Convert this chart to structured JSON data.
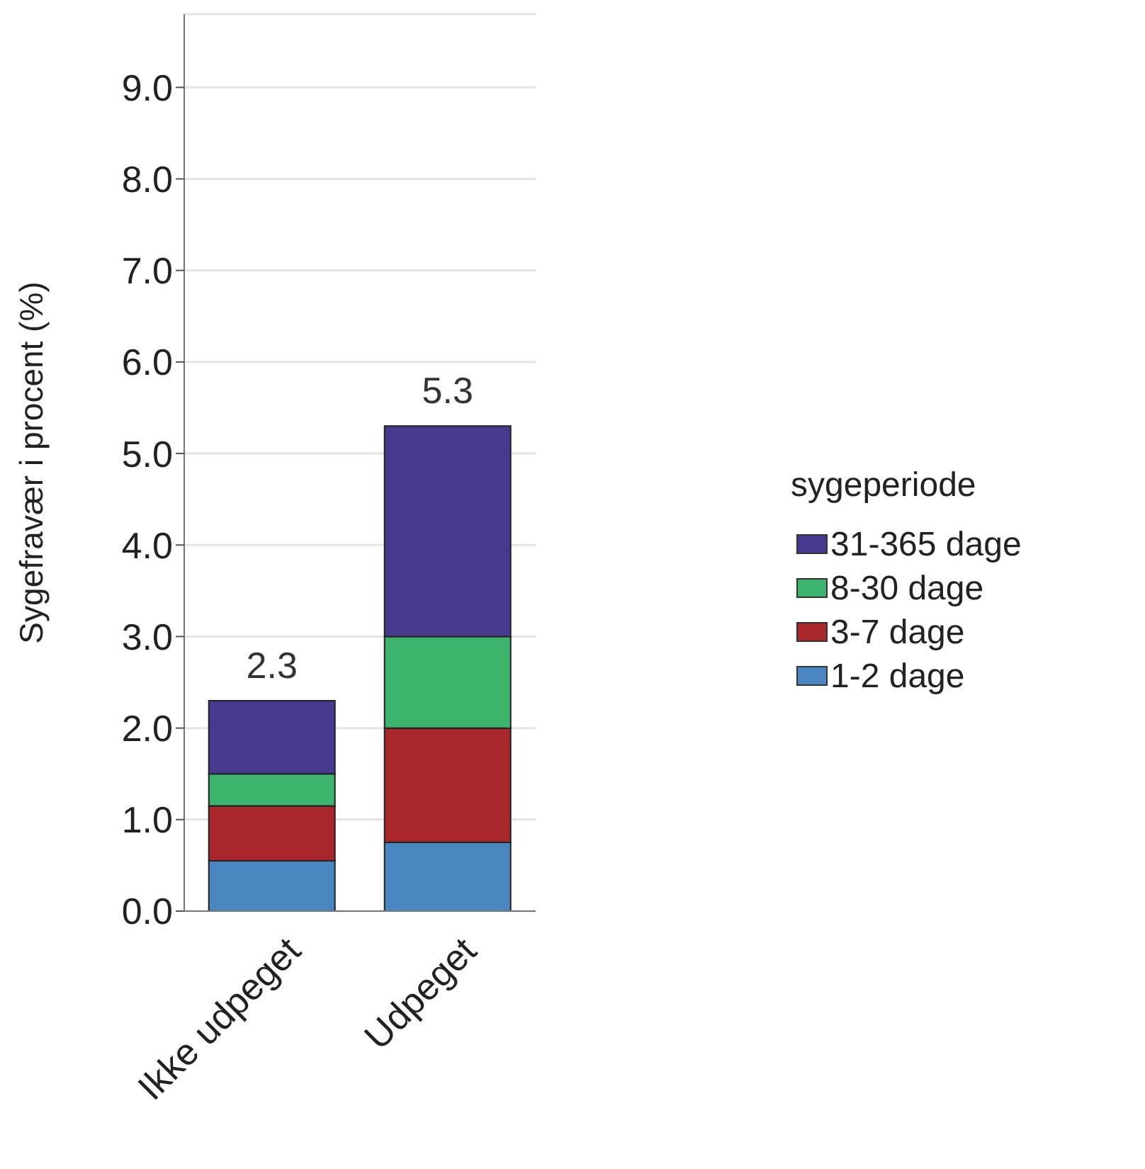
{
  "chart_data": {
    "type": "bar",
    "stacked": true,
    "ylabel": "Sygefravær i procent (%)",
    "legend_title": "sygeperiode",
    "legend": "right",
    "grid": "y",
    "categories": [
      "Ikke udpeget",
      "Udpeget"
    ],
    "series": [
      {
        "name": "1-2 dage",
        "color": "#4a86c0",
        "values": [
          0.55,
          0.75
        ]
      },
      {
        "name": "3-7 dage",
        "color": "#a8272b",
        "values": [
          0.6,
          1.25
        ]
      },
      {
        "name": "8-30 dage",
        "color": "#3cb46e",
        "values": [
          0.35,
          1.0
        ]
      },
      {
        "name": "31-365 dage",
        "color": "#46398e",
        "values": [
          0.8,
          2.3
        ]
      }
    ],
    "totals": [
      "2.3",
      "5.3"
    ],
    "ylim": [
      0,
      9.8
    ],
    "yticks": [
      {
        "value": 0,
        "label": "0.0"
      },
      {
        "value": 1,
        "label": "1.0"
      },
      {
        "value": 2,
        "label": "2.0"
      },
      {
        "value": 3,
        "label": "3.0"
      },
      {
        "value": 4,
        "label": "4.0"
      },
      {
        "value": 5,
        "label": "5.0"
      },
      {
        "value": 6,
        "label": "6.0"
      },
      {
        "value": 7,
        "label": "7.0"
      },
      {
        "value": 8,
        "label": "8.0"
      },
      {
        "value": 9,
        "label": "9.0"
      }
    ]
  }
}
